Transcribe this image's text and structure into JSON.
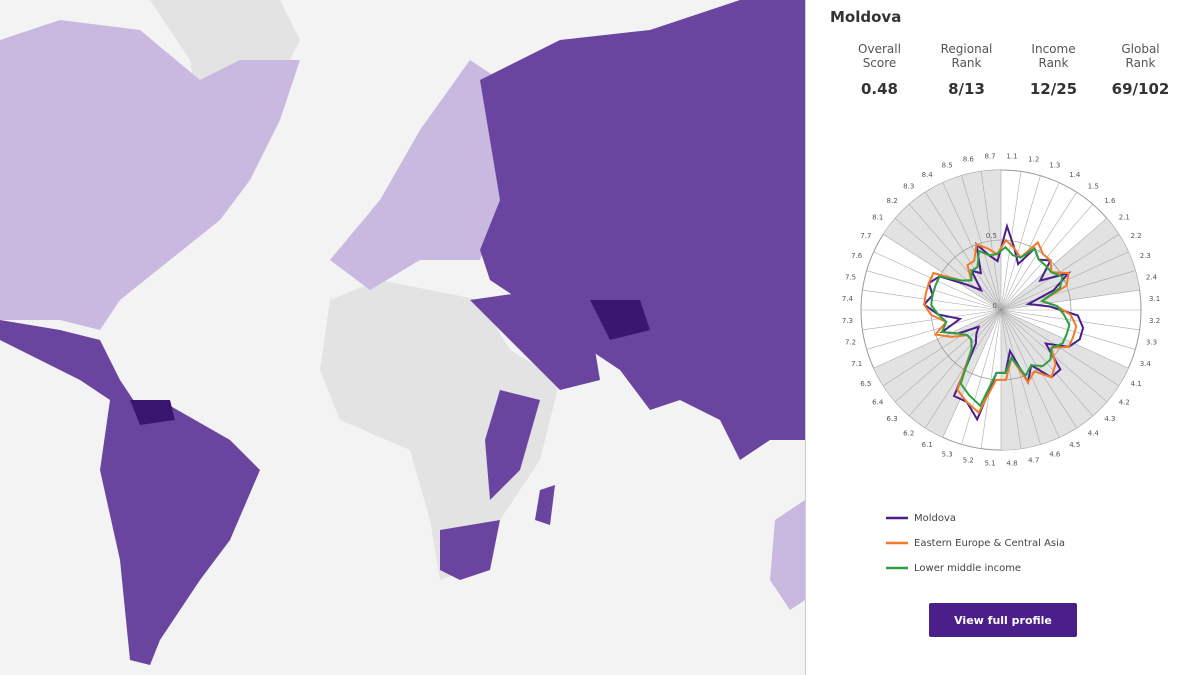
{
  "panel": {
    "title": "Moldova",
    "stats": [
      {
        "label": "Overall Score",
        "value": "0.48"
      },
      {
        "label": "Regional Rank",
        "value": "8/13"
      },
      {
        "label": "Income Rank",
        "value": "12/25"
      },
      {
        "label": "Global Rank",
        "value": "69/102"
      }
    ],
    "button": "View full profile"
  },
  "chart_data": {
    "type": "radar",
    "categories": [
      "1.1",
      "1.2",
      "1.3",
      "1.4",
      "1.5",
      "1.6",
      "2.1",
      "2.2",
      "2.3",
      "2.4",
      "3.1",
      "3.2",
      "3.3",
      "3.4",
      "4.1",
      "4.2",
      "4.3",
      "4.4",
      "4.5",
      "4.6",
      "4.7",
      "4.8",
      "5.1",
      "5.2",
      "5.3",
      "6.1",
      "6.2",
      "6.3",
      "6.4",
      "6.5",
      "7.1",
      "7.2",
      "7.3",
      "7.4",
      "7.5",
      "7.6",
      "7.7",
      "8.1",
      "8.2",
      "8.3",
      "8.4",
      "8.5",
      "8.6",
      "8.7"
    ],
    "rlim": [
      0,
      1
    ],
    "rticks": [
      0,
      0.5
    ],
    "series": [
      {
        "name": "Moldova",
        "color": "#4b1f8a",
        "values": [
          0.6,
          0.45,
          0.35,
          0.5,
          0.45,
          0.5,
          0.35,
          0.55,
          0.4,
          0.2,
          0.35,
          0.55,
          0.6,
          0.6,
          0.55,
          0.4,
          0.6,
          0.6,
          0.45,
          0.55,
          0.3,
          0.45,
          0.45,
          0.8,
          0.7,
          0.7,
          0.3,
          0.25,
          0.2,
          0.35,
          0.45,
          0.3,
          0.45,
          0.55,
          0.5,
          0.55,
          0.5,
          0.3,
          0.2,
          0.35,
          0.3,
          0.5,
          0.4,
          0.35
        ]
      },
      {
        "name": "Eastern Europe & Central Asia",
        "color": "#f07a2a",
        "values": [
          0.5,
          0.45,
          0.4,
          0.55,
          0.5,
          0.5,
          0.45,
          0.55,
          0.5,
          0.3,
          0.4,
          0.5,
          0.55,
          0.55,
          0.55,
          0.45,
          0.55,
          0.6,
          0.5,
          0.55,
          0.35,
          0.5,
          0.5,
          0.75,
          0.7,
          0.65,
          0.35,
          0.3,
          0.3,
          0.4,
          0.5,
          0.4,
          0.5,
          0.55,
          0.55,
          0.55,
          0.55,
          0.35,
          0.3,
          0.4,
          0.4,
          0.5,
          0.45,
          0.4
        ]
      },
      {
        "name": "Lower middle income",
        "color": "#2ea043",
        "values": [
          0.45,
          0.4,
          0.4,
          0.5,
          0.45,
          0.45,
          0.45,
          0.5,
          0.45,
          0.3,
          0.4,
          0.45,
          0.5,
          0.5,
          0.5,
          0.45,
          0.5,
          0.5,
          0.45,
          0.5,
          0.35,
          0.45,
          0.45,
          0.7,
          0.65,
          0.6,
          0.35,
          0.3,
          0.3,
          0.35,
          0.45,
          0.4,
          0.45,
          0.5,
          0.5,
          0.5,
          0.5,
          0.35,
          0.3,
          0.35,
          0.35,
          0.45,
          0.4,
          0.4
        ]
      }
    ]
  }
}
